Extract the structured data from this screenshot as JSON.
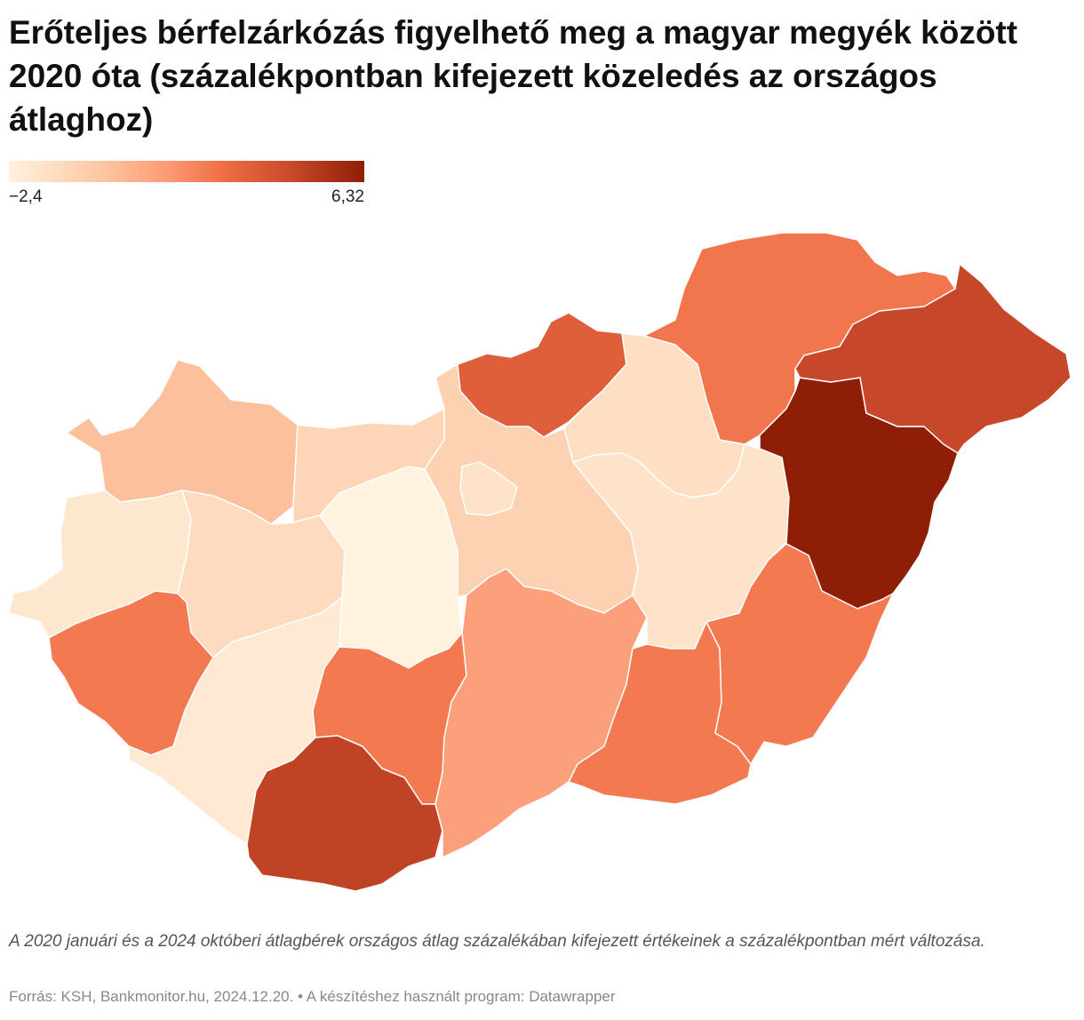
{
  "title": "Erőteljes bérfelzárkózás figyelhető meg a magyar megyék között 2020 óta (százalékpontban kifejezett közeledés az országos átlaghoz)",
  "legend": {
    "min_label": "−2,4",
    "max_label": "6,32",
    "min": -2.4,
    "max": 6.32
  },
  "colors": {
    "low": "#fff2df",
    "high": "#8e1e06"
  },
  "chart_data": {
    "type": "choropleth",
    "regions": [
      {
        "id": "gyor-moson-sopron",
        "value": 0.1
      },
      {
        "id": "komarom-esztergom",
        "value": -0.9
      },
      {
        "id": "vas",
        "value": -1.8
      },
      {
        "id": "veszprem",
        "value": -1.2
      },
      {
        "id": "zala",
        "value": 2.5
      },
      {
        "id": "fejer",
        "value": -2.4
      },
      {
        "id": "somogy",
        "value": -1.9
      },
      {
        "id": "tolna",
        "value": 2.5
      },
      {
        "id": "baranya",
        "value": 4.8
      },
      {
        "id": "pest",
        "value": -0.7
      },
      {
        "id": "budapest",
        "value": -1.6
      },
      {
        "id": "bacs-kiskun",
        "value": 1.3
      },
      {
        "id": "nograd",
        "value": 3.5
      },
      {
        "id": "heves",
        "value": -1.4
      },
      {
        "id": "jasz-nagykun-szolnok",
        "value": -1.6
      },
      {
        "id": "csongrad-csanad",
        "value": 2.5
      },
      {
        "id": "bekes",
        "value": 2.5
      },
      {
        "id": "borsod-abauj-zemplen",
        "value": 2.6
      },
      {
        "id": "hajdu-bihar",
        "value": 6.32
      },
      {
        "id": "szabolcs-szatmar-bereg",
        "value": 4.6
      }
    ]
  },
  "notes": "A 2020 januári és a 2024 októberi átlagbérek országos átlag százalékában kifejezett értékeinek a százalékpontban mért változása.",
  "source": "Forrás: KSH, Bankmonitor.hu, 2024.12.20. • A készítéshez használt program: Datawrapper"
}
